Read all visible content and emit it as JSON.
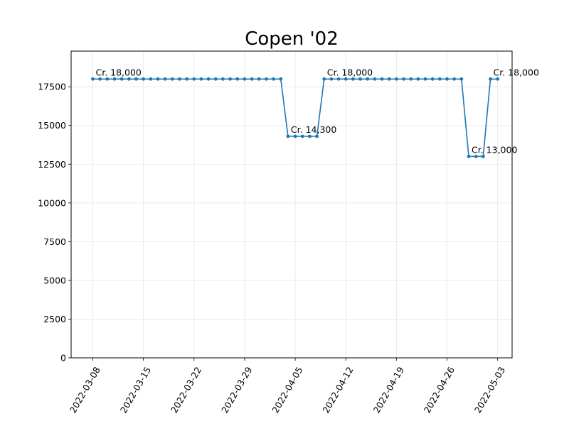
{
  "chart_data": {
    "type": "line",
    "title": "Copen '02",
    "xlabel": "",
    "ylabel": "",
    "grid": true,
    "line_color": "#1f77b4",
    "x_ticks": [
      "2022-03-08",
      "2022-03-15",
      "2022-03-22",
      "2022-03-29",
      "2022-04-05",
      "2022-04-12",
      "2022-04-19",
      "2022-04-26",
      "2022-05-03"
    ],
    "y_ticks": [
      0,
      2500,
      5000,
      7500,
      10000,
      12500,
      15000,
      17500
    ],
    "xlim": [
      "2022-03-05",
      "2022-05-05"
    ],
    "ylim": [
      0,
      19800
    ],
    "series": [
      {
        "x": [
          "2022-03-08",
          "2022-03-09",
          "2022-03-10",
          "2022-03-11",
          "2022-03-12",
          "2022-03-13",
          "2022-03-14",
          "2022-03-15",
          "2022-03-16",
          "2022-03-17",
          "2022-03-18",
          "2022-03-19",
          "2022-03-20",
          "2022-03-21",
          "2022-03-22",
          "2022-03-23",
          "2022-03-24",
          "2022-03-25",
          "2022-03-26",
          "2022-03-27",
          "2022-03-28",
          "2022-03-29",
          "2022-03-30",
          "2022-03-31",
          "2022-04-01",
          "2022-04-02",
          "2022-04-03",
          "2022-04-04",
          "2022-04-05",
          "2022-04-06",
          "2022-04-07",
          "2022-04-08",
          "2022-04-09",
          "2022-04-10",
          "2022-04-11",
          "2022-04-12",
          "2022-04-13",
          "2022-04-14",
          "2022-04-15",
          "2022-04-16",
          "2022-04-17",
          "2022-04-18",
          "2022-04-19",
          "2022-04-20",
          "2022-04-21",
          "2022-04-22",
          "2022-04-23",
          "2022-04-24",
          "2022-04-25",
          "2022-04-26",
          "2022-04-27",
          "2022-04-28",
          "2022-04-29",
          "2022-04-30",
          "2022-05-01",
          "2022-05-02",
          "2022-05-03"
        ],
        "y": [
          18000,
          18000,
          18000,
          18000,
          18000,
          18000,
          18000,
          18000,
          18000,
          18000,
          18000,
          18000,
          18000,
          18000,
          18000,
          18000,
          18000,
          18000,
          18000,
          18000,
          18000,
          18000,
          18000,
          18000,
          18000,
          18000,
          18000,
          14300,
          14300,
          14300,
          14300,
          14300,
          18000,
          18000,
          18000,
          18000,
          18000,
          18000,
          18000,
          18000,
          18000,
          18000,
          18000,
          18000,
          18000,
          18000,
          18000,
          18000,
          18000,
          18000,
          18000,
          18000,
          13000,
          13000,
          13000,
          18000,
          18000
        ]
      }
    ],
    "annotations": [
      {
        "x": "2022-03-08",
        "y": 18000,
        "text": "Cr. 18,000"
      },
      {
        "x": "2022-04-04",
        "y": 14300,
        "text": "Cr. 14,300"
      },
      {
        "x": "2022-04-09",
        "y": 18000,
        "text": "Cr. 18,000"
      },
      {
        "x": "2022-04-29",
        "y": 13000,
        "text": "Cr. 13,000"
      },
      {
        "x": "2022-05-02",
        "y": 18000,
        "text": "Cr. 18,000"
      }
    ]
  }
}
